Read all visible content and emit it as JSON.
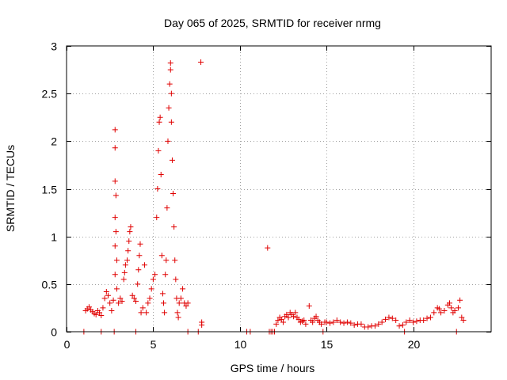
{
  "chart_data": {
    "type": "scatter",
    "title": "Day 065 of 2025, SRMTID for receiver nrmg",
    "xlabel": "GPS time / hours",
    "ylabel": "SRMTID / TECUs",
    "xlim": [
      0,
      24.5
    ],
    "ylim": [
      0,
      3
    ],
    "xticks": [
      0,
      5,
      10,
      15,
      20
    ],
    "xtick_labels": [
      "0",
      "5",
      "10",
      "15",
      "20"
    ],
    "yticks": [
      0,
      0.5,
      1,
      1.5,
      2,
      2.5,
      3
    ],
    "ytick_labels": [
      "0",
      "0.5",
      "1",
      "1.5",
      "2",
      "2.5",
      "3"
    ],
    "grid": true,
    "marker": "+",
    "color": "#e00000",
    "series": [
      {
        "name": "nrmg",
        "points": [
          [
            1.0,
            0.0
          ],
          [
            1.1,
            0.22
          ],
          [
            1.2,
            0.24
          ],
          [
            1.3,
            0.26
          ],
          [
            1.4,
            0.23
          ],
          [
            1.5,
            0.21
          ],
          [
            1.6,
            0.19
          ],
          [
            1.7,
            0.18
          ],
          [
            1.8,
            0.22
          ],
          [
            1.9,
            0.2
          ],
          [
            2.0,
            0.0
          ],
          [
            2.0,
            0.17
          ],
          [
            2.1,
            0.25
          ],
          [
            2.2,
            0.35
          ],
          [
            2.3,
            0.42
          ],
          [
            2.4,
            0.38
          ],
          [
            2.5,
            0.3
          ],
          [
            2.6,
            0.22
          ],
          [
            2.7,
            0.33
          ],
          [
            2.75,
            0.0
          ],
          [
            2.8,
            0.6
          ],
          [
            2.8,
            0.9
          ],
          [
            2.8,
            1.2
          ],
          [
            2.8,
            1.58
          ],
          [
            2.8,
            1.93
          ],
          [
            2.8,
            2.12
          ],
          [
            2.85,
            1.43
          ],
          [
            2.85,
            1.05
          ],
          [
            2.9,
            0.75
          ],
          [
            2.9,
            0.45
          ],
          [
            3.0,
            0.3
          ],
          [
            3.1,
            0.35
          ],
          [
            3.2,
            0.32
          ],
          [
            3.3,
            0.55
          ],
          [
            3.35,
            0.62
          ],
          [
            3.4,
            0.7
          ],
          [
            3.5,
            0.75
          ],
          [
            3.55,
            0.85
          ],
          [
            3.6,
            0.95
          ],
          [
            3.65,
            1.05
          ],
          [
            3.7,
            1.1
          ],
          [
            3.8,
            0.38
          ],
          [
            3.9,
            0.35
          ],
          [
            4.0,
            0.0
          ],
          [
            4.0,
            0.32
          ],
          [
            4.1,
            0.5
          ],
          [
            4.15,
            0.65
          ],
          [
            4.2,
            0.8
          ],
          [
            4.25,
            0.92
          ],
          [
            4.3,
            0.2
          ],
          [
            4.4,
            0.25
          ],
          [
            4.5,
            0.7
          ],
          [
            4.6,
            0.2
          ],
          [
            4.7,
            0.3
          ],
          [
            4.8,
            0.35
          ],
          [
            4.9,
            0.45
          ],
          [
            5.0,
            0.55
          ],
          [
            5.1,
            0.6
          ],
          [
            5.2,
            1.2
          ],
          [
            5.25,
            1.5
          ],
          [
            5.3,
            1.9
          ],
          [
            5.35,
            2.2
          ],
          [
            5.4,
            2.25
          ],
          [
            5.45,
            1.65
          ],
          [
            5.5,
            0.8
          ],
          [
            5.55,
            0.4
          ],
          [
            5.6,
            0.3
          ],
          [
            5.65,
            0.2
          ],
          [
            5.7,
            0.6
          ],
          [
            5.75,
            0.75
          ],
          [
            5.8,
            1.3
          ],
          [
            5.85,
            2.0
          ],
          [
            5.9,
            2.35
          ],
          [
            5.95,
            2.6
          ],
          [
            6.0,
            2.82
          ],
          [
            6.0,
            2.75
          ],
          [
            6.05,
            2.5
          ],
          [
            6.05,
            2.2
          ],
          [
            6.1,
            1.8
          ],
          [
            6.15,
            1.45
          ],
          [
            6.2,
            1.1
          ],
          [
            6.25,
            0.75
          ],
          [
            6.3,
            0.55
          ],
          [
            6.35,
            0.35
          ],
          [
            6.4,
            0.2
          ],
          [
            6.45,
            0.15
          ],
          [
            6.5,
            0.3
          ],
          [
            6.6,
            0.35
          ],
          [
            6.7,
            0.45
          ],
          [
            6.8,
            0.3
          ],
          [
            6.9,
            0.27
          ],
          [
            7.0,
            0.0
          ],
          [
            7.0,
            0.3
          ],
          [
            7.6,
            0.0
          ],
          [
            7.75,
            2.83
          ],
          [
            7.8,
            0.1
          ],
          [
            7.8,
            0.07
          ],
          [
            10.4,
            0.0
          ],
          [
            10.6,
            0.0
          ],
          [
            11.6,
            0.88
          ],
          [
            11.7,
            0.0
          ],
          [
            11.8,
            0.0
          ],
          [
            11.9,
            0.0
          ],
          [
            12.0,
            0.0
          ],
          [
            12.1,
            0.08
          ],
          [
            12.2,
            0.12
          ],
          [
            12.3,
            0.15
          ],
          [
            12.4,
            0.13
          ],
          [
            12.5,
            0.1
          ],
          [
            12.6,
            0.16
          ],
          [
            12.7,
            0.18
          ],
          [
            12.8,
            0.15
          ],
          [
            12.9,
            0.2
          ],
          [
            13.0,
            0.18
          ],
          [
            13.1,
            0.16
          ],
          [
            13.2,
            0.2
          ],
          [
            13.3,
            0.15
          ],
          [
            13.4,
            0.13
          ],
          [
            13.5,
            0.1
          ],
          [
            13.6,
            0.11
          ],
          [
            13.7,
            0.12
          ],
          [
            13.8,
            0.08
          ],
          [
            14.0,
            0.27
          ],
          [
            14.1,
            0.12
          ],
          [
            14.2,
            0.1
          ],
          [
            14.3,
            0.14
          ],
          [
            14.4,
            0.16
          ],
          [
            14.5,
            0.12
          ],
          [
            14.6,
            0.1
          ],
          [
            14.7,
            0.08
          ],
          [
            14.8,
            0.0
          ],
          [
            14.9,
            0.1
          ],
          [
            15.0,
            0.1
          ],
          [
            15.2,
            0.09
          ],
          [
            15.4,
            0.1
          ],
          [
            15.6,
            0.12
          ],
          [
            15.8,
            0.1
          ],
          [
            16.0,
            0.09
          ],
          [
            16.2,
            0.1
          ],
          [
            16.4,
            0.09
          ],
          [
            16.6,
            0.07
          ],
          [
            16.8,
            0.08
          ],
          [
            17.0,
            0.08
          ],
          [
            17.2,
            0.05
          ],
          [
            17.4,
            0.05
          ],
          [
            17.6,
            0.06
          ],
          [
            17.8,
            0.06
          ],
          [
            18.0,
            0.08
          ],
          [
            18.2,
            0.1
          ],
          [
            18.4,
            0.13
          ],
          [
            18.6,
            0.15
          ],
          [
            18.8,
            0.14
          ],
          [
            19.0,
            0.12
          ],
          [
            19.2,
            0.06
          ],
          [
            19.4,
            0.07
          ],
          [
            19.5,
            0.0
          ],
          [
            19.6,
            0.1
          ],
          [
            19.8,
            0.12
          ],
          [
            20.0,
            0.1
          ],
          [
            20.2,
            0.11
          ],
          [
            20.4,
            0.12
          ],
          [
            20.6,
            0.12
          ],
          [
            20.8,
            0.14
          ],
          [
            21.0,
            0.15
          ],
          [
            21.2,
            0.2
          ],
          [
            21.4,
            0.25
          ],
          [
            21.5,
            0.24
          ],
          [
            21.6,
            0.2
          ],
          [
            21.8,
            0.22
          ],
          [
            22.0,
            0.28
          ],
          [
            22.1,
            0.3
          ],
          [
            22.2,
            0.25
          ],
          [
            22.3,
            0.2
          ],
          [
            22.4,
            0.22
          ],
          [
            22.5,
            0.0
          ],
          [
            22.6,
            0.25
          ],
          [
            22.7,
            0.33
          ],
          [
            22.8,
            0.15
          ],
          [
            22.9,
            0.12
          ]
        ]
      }
    ]
  }
}
